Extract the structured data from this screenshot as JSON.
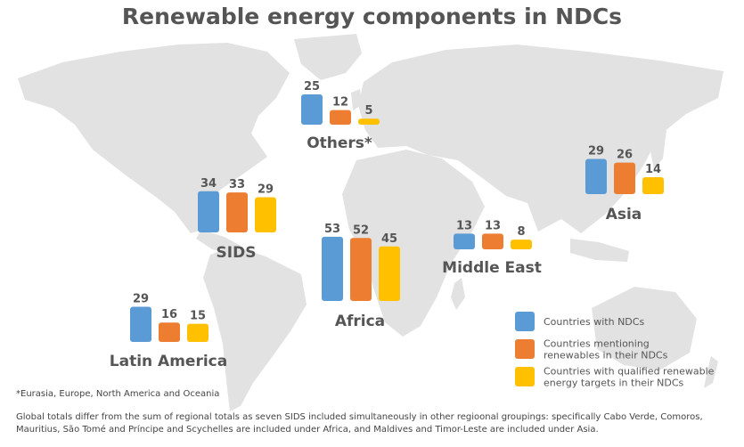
{
  "title": "Renewable energy components in NDCs",
  "colors": {
    "map": "#e2e2e2",
    "series": [
      "#5b9bd5",
      "#ed7d31",
      "#ffc000"
    ],
    "text": "#555555"
  },
  "chart_data": {
    "type": "bar",
    "title": "Renewable energy components in NDCs",
    "categories": [
      "Others*",
      "SIDS",
      "Latin America",
      "Africa",
      "Middle East",
      "Asia"
    ],
    "series": [
      {
        "name": "Countries with NDCs",
        "values": [
          25,
          34,
          29,
          53,
          13,
          29
        ]
      },
      {
        "name": "Countries mentioning renewables in their NDCs",
        "values": [
          12,
          33,
          16,
          52,
          13,
          26
        ]
      },
      {
        "name": "Countries with qualified renewable energy targets in their NDCs",
        "values": [
          5,
          29,
          15,
          45,
          8,
          14
        ]
      }
    ],
    "legend_position": "bottom-right"
  },
  "legend": [
    {
      "lines": [
        "Countries with NDCs"
      ]
    },
    {
      "lines": [
        "Countries mentioning",
        "renewables in their NDCs"
      ]
    },
    {
      "lines": [
        "Countries with qualified renewable",
        "energy targets in their NDCs"
      ]
    }
  ],
  "footnote": "*Eurasia, Europe, North America and Oceania",
  "note": "Global totals differ from the sum of regional totals as seven SIDS included simultaneously in other regioonal groupings: specifically Cabo Verde, Comoros, Mauritius, São Tomé and Príncipe and Scychelles are included under Africa, and Maldives and Timor-Leste are included under Asia."
}
